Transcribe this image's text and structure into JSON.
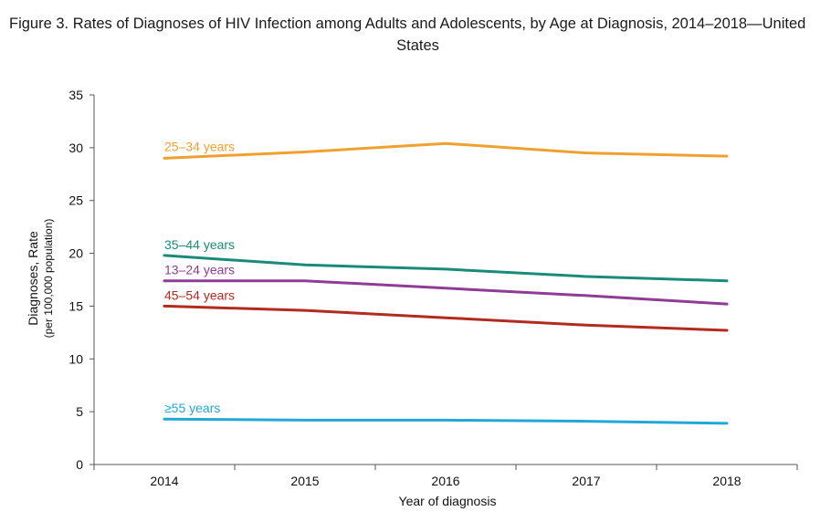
{
  "chart_data": {
    "type": "line",
    "title": "Figure 3. Rates of Diagnoses of HIV Infection among Adults and Adolescents, by Age at Diagnosis, 2014–2018—United States",
    "title_line1": "Figure 3. Rates of Diagnoses of HIV Infection among Adults and Adolescents, by Age at Diagnosis, 2014–2018—United",
    "title_line2": "States",
    "xlabel": "Year of diagnosis",
    "ylabel": "Diagnoses, Rate",
    "ylabel_sub": "(per 100,000 population)",
    "x": [
      "2014",
      "2015",
      "2016",
      "2017",
      "2018"
    ],
    "ylim": [
      0,
      35
    ],
    "yticks": [
      0,
      5,
      10,
      15,
      20,
      25,
      30,
      35
    ],
    "grid": false,
    "series": [
      {
        "name": "25–34 years",
        "color": "#F0A030",
        "values": [
          29.0,
          29.6,
          30.4,
          29.5,
          29.2
        ]
      },
      {
        "name": "35–44 years",
        "color": "#1A8A7A",
        "values": [
          19.8,
          18.9,
          18.5,
          17.8,
          17.4
        ]
      },
      {
        "name": "13–24 years",
        "color": "#8E3C96",
        "values": [
          17.4,
          17.4,
          16.7,
          16.0,
          15.2
        ]
      },
      {
        "name": "45–54 years",
        "color": "#B32A1E",
        "values": [
          15.0,
          14.6,
          13.9,
          13.2,
          12.7
        ]
      },
      {
        "name": "≥55 years",
        "color": "#22A8D8",
        "values": [
          4.3,
          4.2,
          4.2,
          4.1,
          3.9
        ]
      }
    ]
  }
}
